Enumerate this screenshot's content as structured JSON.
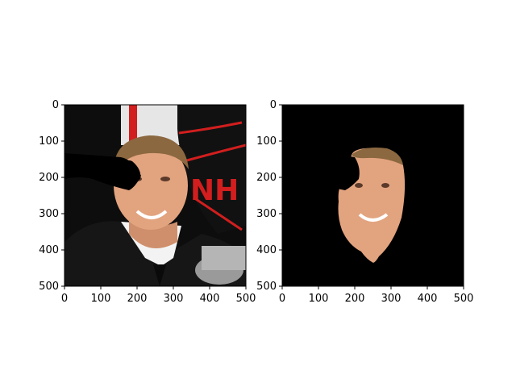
{
  "chart_data": [
    {
      "type": "image",
      "content": "masked photograph: portrait of a man with the left side of the frame partly covered by a black blob near the eye",
      "xlim": [
        0,
        500
      ],
      "ylim": [
        500,
        0
      ],
      "xticks": [
        0,
        100,
        200,
        300,
        400,
        500
      ],
      "yticks": [
        0,
        100,
        200,
        300,
        400,
        500
      ],
      "xlabel": "",
      "ylabel": "",
      "title": "",
      "grid": false
    },
    {
      "type": "image",
      "content": "segmented face on black background, with a black blob covering part of the left eye region",
      "xlim": [
        0,
        500
      ],
      "ylim": [
        500,
        0
      ],
      "xticks": [
        0,
        100,
        200,
        300,
        400,
        500
      ],
      "yticks": [
        0,
        100,
        200,
        300,
        400,
        500
      ],
      "xlabel": "",
      "ylabel": "",
      "title": "",
      "grid": false
    }
  ],
  "colors": {
    "axis": "#000000",
    "background_black": "#000000",
    "banner_gray": "#e7e7e7",
    "nhl_red": "#d01f1f",
    "suit": "#141414",
    "skin": "#e2a37f",
    "skin_shadow": "#c47f5d",
    "hair": "#8b6840",
    "shirt": "#f4f4f4"
  }
}
